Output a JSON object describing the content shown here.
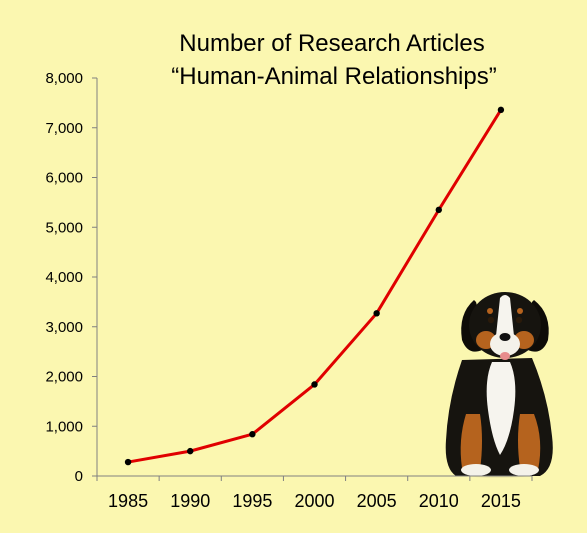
{
  "chart_data": {
    "type": "line",
    "title_lines": [
      "Number of Research Articles",
      "“Human-Animal Relationships”"
    ],
    "x": [
      1985,
      1990,
      1995,
      2000,
      2005,
      2010,
      2015
    ],
    "x_tick_labels": [
      "1985",
      "1990",
      "1995",
      "2000",
      "2005",
      "2010",
      "2015"
    ],
    "series": [
      {
        "values": [
          280,
          500,
          840,
          1840,
          3270,
          5350,
          7360
        ]
      }
    ],
    "ylim": [
      0,
      8000
    ],
    "y_ticks": [
      0,
      1000,
      2000,
      3000,
      4000,
      5000,
      6000,
      7000,
      8000
    ],
    "y_tick_labels": [
      "0",
      "1,000",
      "2,000",
      "3,000",
      "4,000",
      "5,000",
      "6,000",
      "7,000",
      "8,000"
    ],
    "xlabel": "",
    "ylabel": "",
    "grid": false,
    "legend": "none",
    "line_color": "#e00000",
    "marker_color": "#000000"
  },
  "decoration": {
    "picture": "puppy-photo"
  },
  "colors": {
    "background": "#fbf7b0"
  }
}
